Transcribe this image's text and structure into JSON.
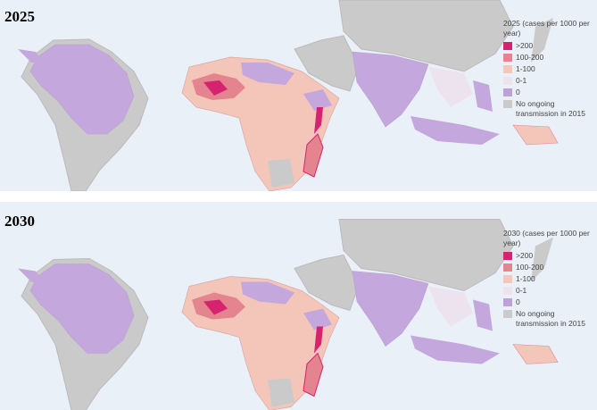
{
  "panels": [
    {
      "year": "2025",
      "legend": {
        "title": "2025 (cases per 1000 per year)",
        "items": [
          {
            "label": ">200",
            "color": "#d6236f"
          },
          {
            "label": "100-200",
            "color": "#e4848f"
          },
          {
            "label": "1-100",
            "color": "#f5c7ba"
          },
          {
            "label": "0-1",
            "color": "#ede3ef"
          },
          {
            "label": "0",
            "color": "#bfa1da"
          },
          {
            "label": "No ongoing transmission in 2015",
            "color": "#cacaca"
          }
        ]
      }
    },
    {
      "year": "2030",
      "legend": {
        "title": "2030 (cases per 1000 per year)",
        "items": [
          {
            "label": ">200",
            "color": "#d6236f"
          },
          {
            "label": "100-200",
            "color": "#e4848f"
          },
          {
            "label": "1-100",
            "color": "#f5c7ba"
          },
          {
            "label": "0-1",
            "color": "#ede3ef"
          },
          {
            "label": "0",
            "color": "#bfa1da"
          },
          {
            "label": "No ongoing transmission in 2015",
            "color": "#cacaca"
          }
        ]
      }
    }
  ]
}
